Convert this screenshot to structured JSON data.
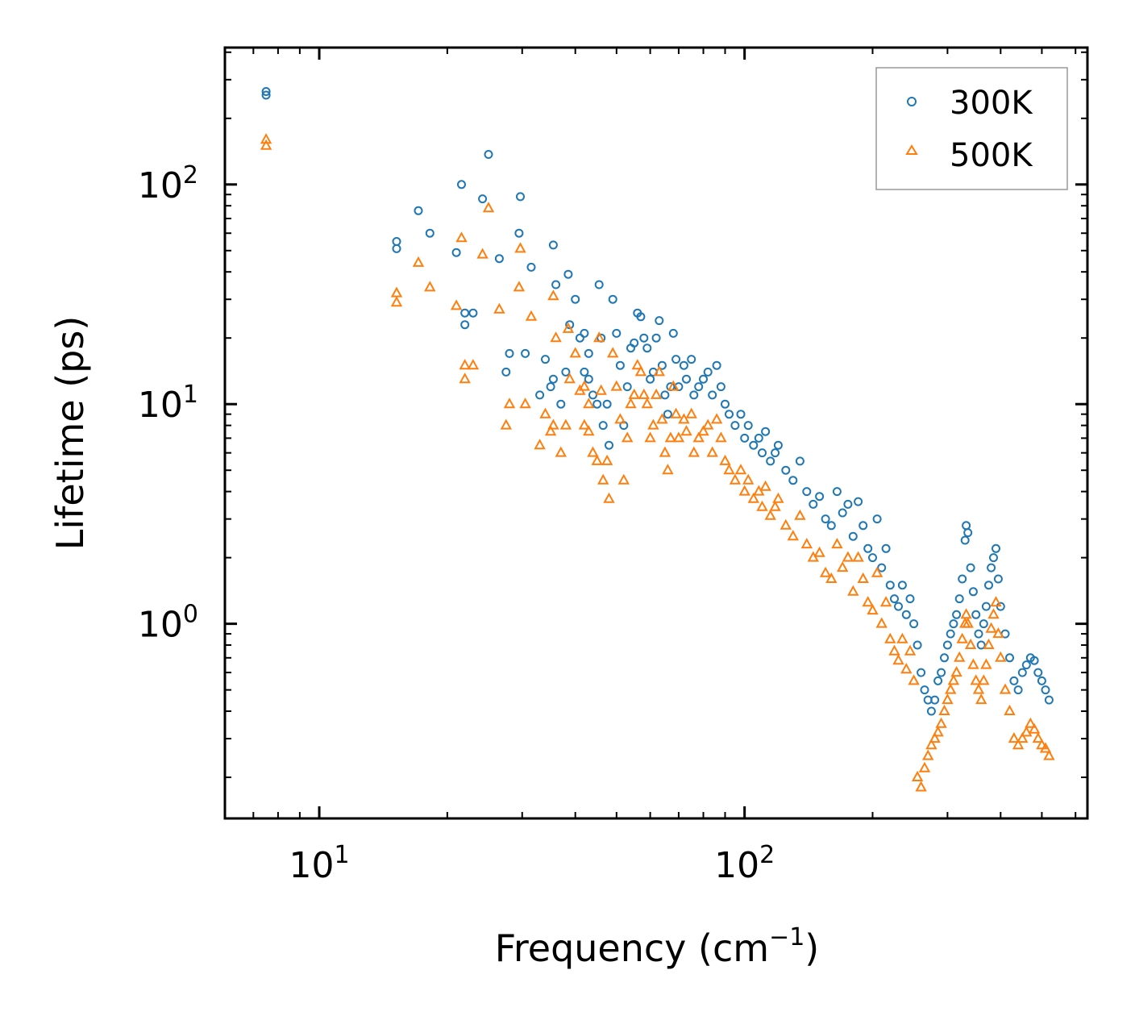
{
  "chart_data": {
    "type": "scatter",
    "title": "",
    "xlabel": "Frequency (cm",
    "xlabel_sup": "−1",
    "xlabel_close": ")",
    "ylabel": "Lifetime (ps)",
    "xscale": "log",
    "yscale": "log",
    "xlim": [
      6,
      640
    ],
    "ylim": [
      0.13,
      420
    ],
    "x_ticks": [
      {
        "value": 10,
        "base": "10",
        "exp": "1"
      },
      {
        "value": 100,
        "base": "10",
        "exp": "2"
      }
    ],
    "y_ticks": [
      {
        "value": 1,
        "base": "10",
        "exp": "0"
      },
      {
        "value": 10,
        "base": "10",
        "exp": "1"
      },
      {
        "value": 100,
        "base": "10",
        "exp": "2"
      }
    ],
    "legend_position": "top-right",
    "series": [
      {
        "name": "300K",
        "marker": "circle",
        "color": "#1f77b4",
        "points": [
          [
            7.5,
            265
          ],
          [
            7.5,
            255
          ],
          [
            15.2,
            55
          ],
          [
            15.2,
            51
          ],
          [
            17.1,
            76
          ],
          [
            18.2,
            60
          ],
          [
            21,
            49
          ],
          [
            21.6,
            100
          ],
          [
            22,
            26
          ],
          [
            22,
            23
          ],
          [
            23,
            26
          ],
          [
            24.2,
            86
          ],
          [
            25,
            137
          ],
          [
            26.5,
            46
          ],
          [
            27.5,
            14
          ],
          [
            28,
            17
          ],
          [
            29.5,
            60
          ],
          [
            29.7,
            88
          ],
          [
            30.5,
            17
          ],
          [
            31.5,
            42
          ],
          [
            33,
            11
          ],
          [
            34,
            16
          ],
          [
            35,
            12
          ],
          [
            35.5,
            13
          ],
          [
            35.5,
            53
          ],
          [
            36,
            35
          ],
          [
            37,
            10
          ],
          [
            38,
            14
          ],
          [
            38.5,
            39
          ],
          [
            38.8,
            23
          ],
          [
            40,
            30
          ],
          [
            41,
            20
          ],
          [
            42,
            21
          ],
          [
            42,
            14
          ],
          [
            43,
            13
          ],
          [
            43,
            17
          ],
          [
            44,
            11
          ],
          [
            45,
            10
          ],
          [
            45.5,
            35
          ],
          [
            46,
            20
          ],
          [
            46.5,
            8
          ],
          [
            47.5,
            10
          ],
          [
            48,
            6.5
          ],
          [
            49,
            30
          ],
          [
            50,
            21
          ],
          [
            51,
            15
          ],
          [
            52,
            8
          ],
          [
            53,
            12
          ],
          [
            54,
            18
          ],
          [
            55,
            19
          ],
          [
            56,
            26
          ],
          [
            57,
            25
          ],
          [
            58,
            20
          ],
          [
            59,
            18
          ],
          [
            60,
            13
          ],
          [
            61,
            14
          ],
          [
            62,
            20
          ],
          [
            63,
            24
          ],
          [
            64,
            15
          ],
          [
            65,
            11
          ],
          [
            66,
            9
          ],
          [
            67,
            12
          ],
          [
            68,
            21
          ],
          [
            69,
            16
          ],
          [
            70,
            12
          ],
          [
            72,
            15
          ],
          [
            73,
            13
          ],
          [
            75,
            16
          ],
          [
            76,
            11
          ],
          [
            78,
            12
          ],
          [
            80,
            13
          ],
          [
            82,
            14
          ],
          [
            84,
            11
          ],
          [
            86,
            15
          ],
          [
            88,
            12
          ],
          [
            90,
            10
          ],
          [
            92,
            9
          ],
          [
            95,
            8
          ],
          [
            98,
            9
          ],
          [
            100,
            7
          ],
          [
            102,
            8
          ],
          [
            105,
            6.5
          ],
          [
            108,
            7
          ],
          [
            110,
            6
          ],
          [
            112,
            7.5
          ],
          [
            115,
            5.5
          ],
          [
            118,
            6
          ],
          [
            120,
            6.5
          ],
          [
            125,
            5
          ],
          [
            130,
            4.5
          ],
          [
            135,
            5.5
          ],
          [
            140,
            4
          ],
          [
            145,
            3.5
          ],
          [
            150,
            3.8
          ],
          [
            155,
            3
          ],
          [
            160,
            2.8
          ],
          [
            165,
            4
          ],
          [
            170,
            3.2
          ],
          [
            175,
            3.5
          ],
          [
            180,
            2.5
          ],
          [
            185,
            3.6
          ],
          [
            190,
            2.8
          ],
          [
            195,
            2.2
          ],
          [
            200,
            2
          ],
          [
            205,
            3
          ],
          [
            210,
            1.8
          ],
          [
            215,
            2.2
          ],
          [
            220,
            1.5
          ],
          [
            225,
            1.3
          ],
          [
            230,
            1.2
          ],
          [
            235,
            1.5
          ],
          [
            240,
            1.1
          ],
          [
            245,
            1.3
          ],
          [
            250,
            1.0
          ],
          [
            255,
            0.8
          ],
          [
            260,
            0.6
          ],
          [
            265,
            0.5
          ],
          [
            270,
            0.45
          ],
          [
            275,
            0.4
          ],
          [
            280,
            0.45
          ],
          [
            285,
            0.55
          ],
          [
            290,
            0.6
          ],
          [
            295,
            0.7
          ],
          [
            300,
            0.8
          ],
          [
            305,
            0.9
          ],
          [
            310,
            1.0
          ],
          [
            315,
            1.1
          ],
          [
            320,
            1.3
          ],
          [
            325,
            1.6
          ],
          [
            330,
            2.4
          ],
          [
            332,
            2.8
          ],
          [
            335,
            2.6
          ],
          [
            340,
            1.8
          ],
          [
            345,
            1.4
          ],
          [
            350,
            1.1
          ],
          [
            355,
            0.9
          ],
          [
            360,
            0.8
          ],
          [
            365,
            1.0
          ],
          [
            370,
            1.2
          ],
          [
            375,
            1.5
          ],
          [
            380,
            1.8
          ],
          [
            385,
            2.0
          ],
          [
            390,
            2.2
          ],
          [
            395,
            1.6
          ],
          [
            400,
            1.2
          ],
          [
            410,
            0.9
          ],
          [
            420,
            0.7
          ],
          [
            430,
            0.55
          ],
          [
            440,
            0.5
          ],
          [
            450,
            0.6
          ],
          [
            460,
            0.65
          ],
          [
            470,
            0.7
          ],
          [
            480,
            0.68
          ],
          [
            490,
            0.6
          ],
          [
            500,
            0.55
          ],
          [
            510,
            0.5
          ],
          [
            520,
            0.45
          ]
        ]
      },
      {
        "name": "500K",
        "marker": "triangle",
        "color": "#ff7f0e",
        "points": [
          [
            7.5,
            160
          ],
          [
            7.5,
            150
          ],
          [
            15.2,
            32
          ],
          [
            15.2,
            29
          ],
          [
            17.1,
            44
          ],
          [
            18.2,
            34
          ],
          [
            21,
            28
          ],
          [
            21.6,
            57
          ],
          [
            22,
            15
          ],
          [
            22,
            13
          ],
          [
            23,
            15
          ],
          [
            24.2,
            48
          ],
          [
            25,
            78
          ],
          [
            26.5,
            27
          ],
          [
            27.5,
            8
          ],
          [
            28,
            10
          ],
          [
            29.5,
            34
          ],
          [
            29.7,
            51
          ],
          [
            30.5,
            10
          ],
          [
            31.5,
            25
          ],
          [
            33,
            6.5
          ],
          [
            34,
            9
          ],
          [
            35,
            7.5
          ],
          [
            35.5,
            8
          ],
          [
            35.5,
            31
          ],
          [
            36,
            20
          ],
          [
            37,
            6
          ],
          [
            38,
            8
          ],
          [
            38.5,
            22
          ],
          [
            38.8,
            13
          ],
          [
            40,
            17
          ],
          [
            41,
            11.5
          ],
          [
            42,
            12
          ],
          [
            42,
            8
          ],
          [
            43,
            7.5
          ],
          [
            43,
            10
          ],
          [
            44,
            6
          ],
          [
            45,
            5.5
          ],
          [
            45.5,
            20
          ],
          [
            46,
            11.5
          ],
          [
            46.5,
            4.5
          ],
          [
            47.5,
            5.5
          ],
          [
            48,
            3.7
          ],
          [
            49,
            17
          ],
          [
            50,
            12
          ],
          [
            51,
            8.5
          ],
          [
            52,
            4.5
          ],
          [
            53,
            7
          ],
          [
            54,
            10
          ],
          [
            55,
            11
          ],
          [
            56,
            15
          ],
          [
            57,
            14
          ],
          [
            58,
            11
          ],
          [
            59,
            10
          ],
          [
            60,
            7
          ],
          [
            61,
            8
          ],
          [
            62,
            11
          ],
          [
            63,
            14
          ],
          [
            64,
            8.5
          ],
          [
            65,
            6
          ],
          [
            66,
            5
          ],
          [
            67,
            7
          ],
          [
            68,
            12
          ],
          [
            69,
            9
          ],
          [
            70,
            7
          ],
          [
            72,
            8.5
          ],
          [
            73,
            7.5
          ],
          [
            75,
            9
          ],
          [
            76,
            6
          ],
          [
            78,
            7
          ],
          [
            80,
            7.5
          ],
          [
            82,
            8
          ],
          [
            84,
            6
          ],
          [
            86,
            8.5
          ],
          [
            88,
            7
          ],
          [
            90,
            5.5
          ],
          [
            92,
            5
          ],
          [
            95,
            4.5
          ],
          [
            98,
            5
          ],
          [
            100,
            4
          ],
          [
            102,
            4.5
          ],
          [
            105,
            3.7
          ],
          [
            108,
            4
          ],
          [
            110,
            3.4
          ],
          [
            112,
            4.2
          ],
          [
            115,
            3.1
          ],
          [
            118,
            3.4
          ],
          [
            120,
            3.7
          ],
          [
            125,
            2.8
          ],
          [
            130,
            2.5
          ],
          [
            135,
            3.1
          ],
          [
            140,
            2.3
          ],
          [
            145,
            2.0
          ],
          [
            150,
            2.1
          ],
          [
            155,
            1.7
          ],
          [
            160,
            1.6
          ],
          [
            165,
            2.3
          ],
          [
            170,
            1.8
          ],
          [
            175,
            2.0
          ],
          [
            180,
            1.4
          ],
          [
            185,
            2.0
          ],
          [
            190,
            1.6
          ],
          [
            195,
            1.25
          ],
          [
            200,
            1.15
          ],
          [
            205,
            1.7
          ],
          [
            210,
            1.0
          ],
          [
            215,
            1.25
          ],
          [
            220,
            0.85
          ],
          [
            225,
            0.75
          ],
          [
            230,
            0.68
          ],
          [
            235,
            0.85
          ],
          [
            240,
            0.62
          ],
          [
            245,
            0.75
          ],
          [
            250,
            0.55
          ],
          [
            255,
            0.2
          ],
          [
            260,
            0.18
          ],
          [
            265,
            0.22
          ],
          [
            270,
            0.25
          ],
          [
            275,
            0.28
          ],
          [
            280,
            0.3
          ],
          [
            285,
            0.32
          ],
          [
            290,
            0.35
          ],
          [
            295,
            0.4
          ],
          [
            300,
            0.45
          ],
          [
            305,
            0.5
          ],
          [
            310,
            0.55
          ],
          [
            315,
            0.6
          ],
          [
            320,
            0.7
          ],
          [
            325,
            0.85
          ],
          [
            330,
            1.0
          ],
          [
            332,
            1.1
          ],
          [
            335,
            1.0
          ],
          [
            340,
            0.8
          ],
          [
            345,
            0.65
          ],
          [
            350,
            0.55
          ],
          [
            355,
            0.5
          ],
          [
            360,
            0.45
          ],
          [
            365,
            0.55
          ],
          [
            370,
            0.65
          ],
          [
            375,
            0.8
          ],
          [
            380,
            0.95
          ],
          [
            385,
            1.1
          ],
          [
            390,
            1.25
          ],
          [
            395,
            0.9
          ],
          [
            400,
            0.7
          ],
          [
            410,
            0.5
          ],
          [
            420,
            0.4
          ],
          [
            430,
            0.3
          ],
          [
            440,
            0.28
          ],
          [
            450,
            0.3
          ],
          [
            460,
            0.32
          ],
          [
            470,
            0.35
          ],
          [
            480,
            0.33
          ],
          [
            490,
            0.3
          ],
          [
            500,
            0.28
          ],
          [
            510,
            0.27
          ],
          [
            520,
            0.25
          ]
        ]
      }
    ]
  }
}
